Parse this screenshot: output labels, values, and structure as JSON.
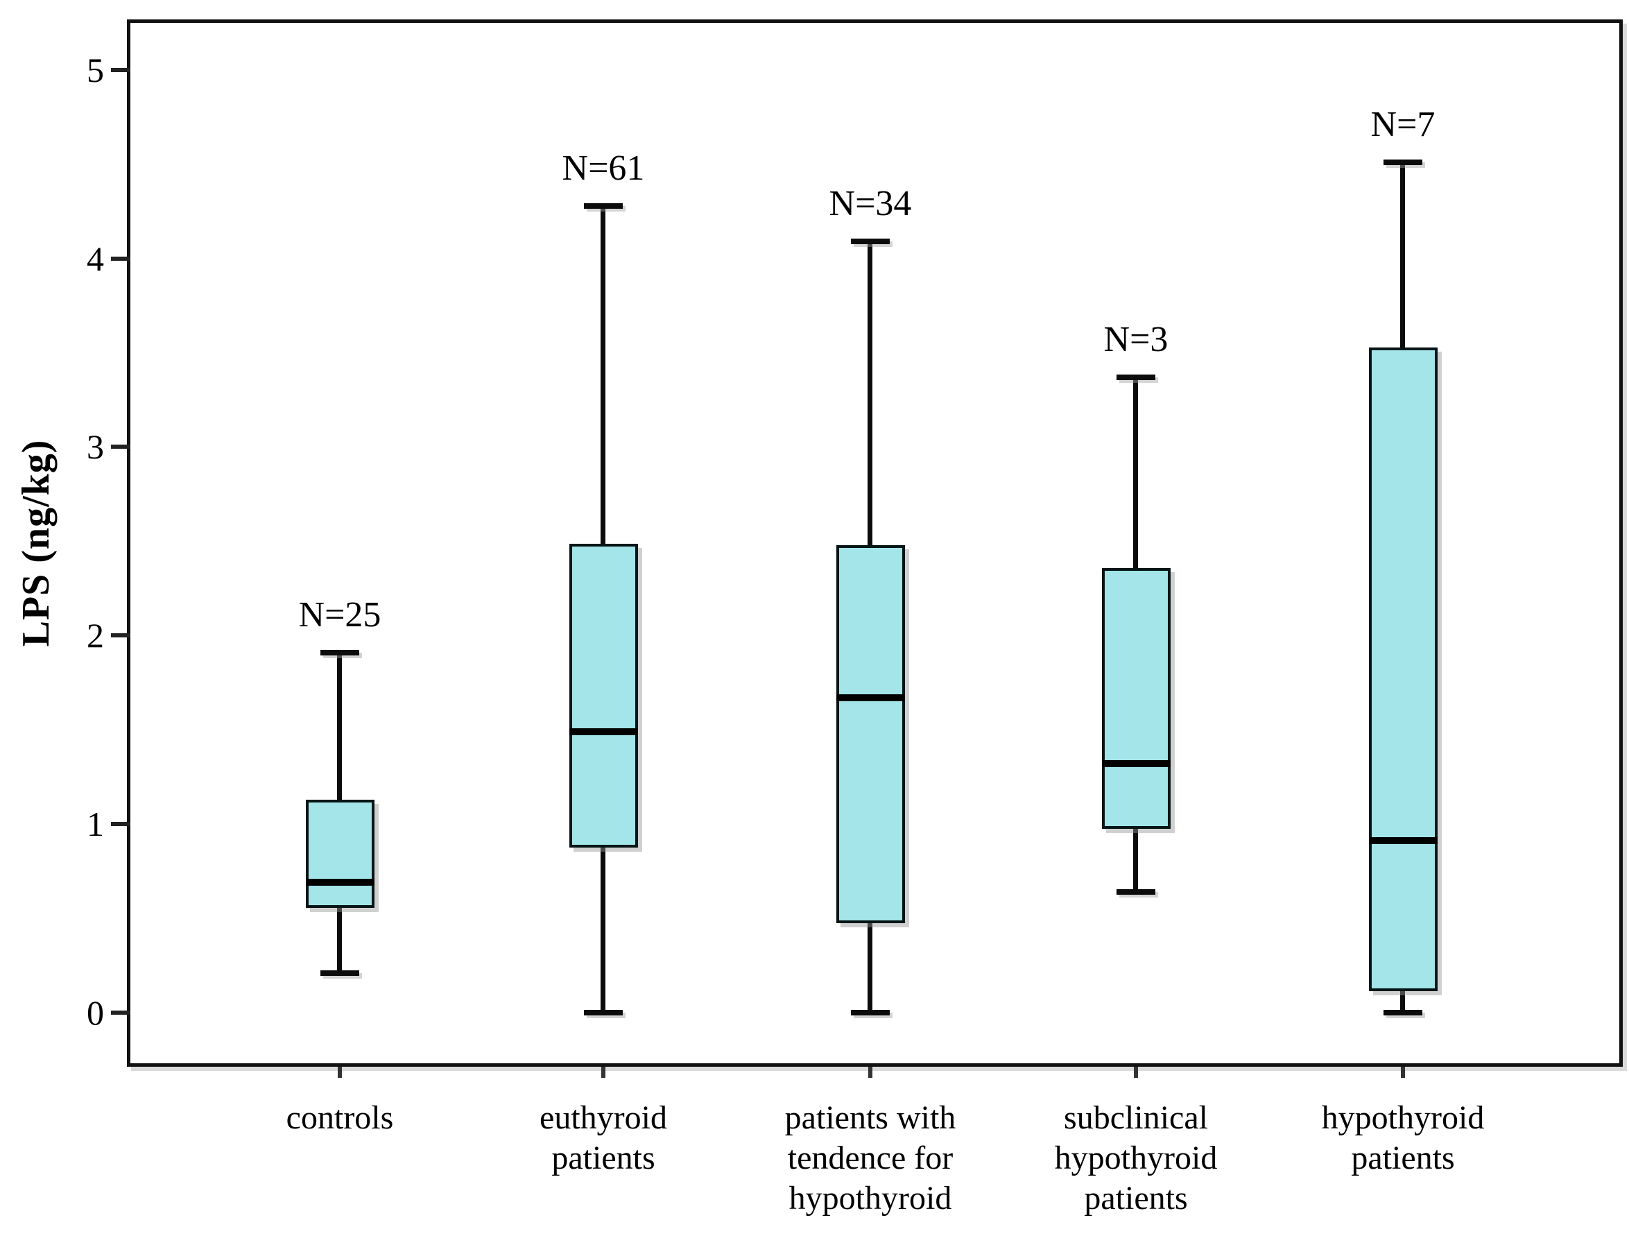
{
  "chart_data": {
    "type": "box",
    "title": "",
    "xlabel": "",
    "ylabel": "LPS (ng/kg)",
    "ylim": [
      0,
      5
    ],
    "yticks": [
      "0",
      "1",
      "2",
      "3",
      "4",
      "5"
    ],
    "grid": false,
    "legend": null,
    "categories": [
      "controls",
      "euthyroid patients",
      "patients with tendence for hypothyroid",
      "subclinical hypothyroid patients",
      "hypothyroid patients"
    ],
    "category_label_lines": [
      [
        "controls"
      ],
      [
        "euthyroid",
        "patients"
      ],
      [
        "patients with",
        "tendence for",
        "hypothyroid"
      ],
      [
        "subclinical",
        "hypothyroid",
        "patients"
      ],
      [
        "hypothyroid",
        "patients"
      ]
    ],
    "series": [
      {
        "label": "controls",
        "n": 25,
        "n_label": "N=25",
        "whisker_low": 0.21,
        "q1": 0.56,
        "median": 0.69,
        "q3": 1.12,
        "whisker_high": 1.91
      },
      {
        "label": "euthyroid patients",
        "n": 61,
        "n_label": "N=61",
        "whisker_low": 0.0,
        "q1": 0.88,
        "median": 1.49,
        "q3": 2.48,
        "whisker_high": 4.28
      },
      {
        "label": "patients with tendence for hypothyroid",
        "n": 34,
        "n_label": "N=34",
        "whisker_low": 0.0,
        "q1": 0.48,
        "median": 1.67,
        "q3": 2.47,
        "whisker_high": 4.09
      },
      {
        "label": "subclinical hypothyroid patients",
        "n": 3,
        "n_label": "N=3",
        "whisker_low": 0.64,
        "q1": 0.98,
        "median": 1.32,
        "q3": 2.35,
        "whisker_high": 3.37
      },
      {
        "label": "hypothyroid patients",
        "n": 7,
        "n_label": "N=7",
        "whisker_low": 0.0,
        "q1": 0.12,
        "median": 0.91,
        "q3": 3.52,
        "whisker_high": 4.51
      }
    ],
    "colors": {
      "box_fill": "#A3E5E8",
      "box_border": "#061516",
      "median": "#000000",
      "whisker": "#0C0C0C",
      "frame": "#111111",
      "background": "#FFFFFF"
    }
  }
}
